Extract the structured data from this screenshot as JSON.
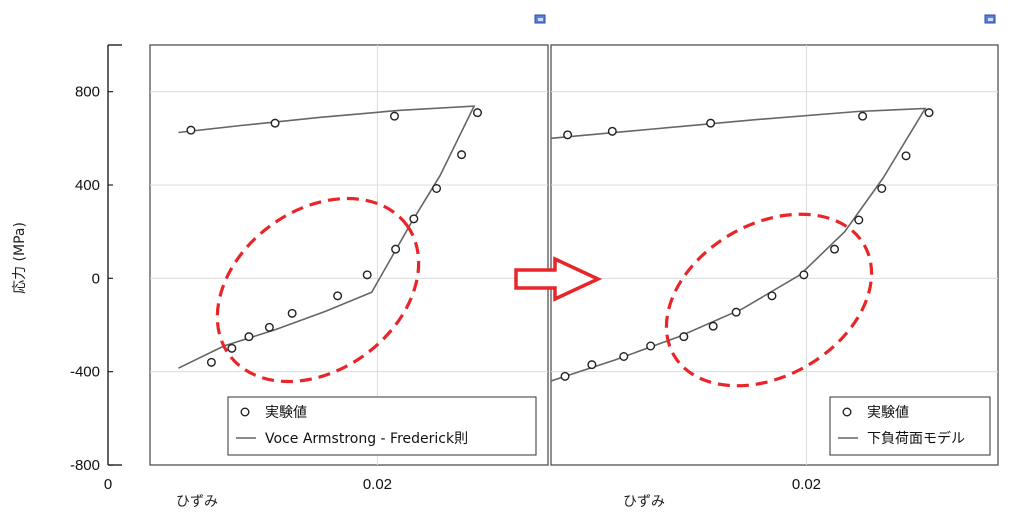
{
  "ylabel": "応力 (MPa)",
  "chart_data": [
    {
      "type": "scatter",
      "xlabel": "ひずみ",
      "ylabel": "応力 (MPa)",
      "xlim": [
        0,
        0.035
      ],
      "ylim": [
        -800,
        1000
      ],
      "xticks": [
        "0",
        "0.02"
      ],
      "yticks": [
        "-800",
        "-400",
        "0",
        "400",
        "800"
      ],
      "grid": true,
      "legend_position": "bottom-right",
      "series": [
        {
          "name": "実験値",
          "style": "circle-markers",
          "x": [
            0.0036,
            0.011,
            0.0215,
            0.0288,
            0.0274,
            0.0252,
            0.0232,
            0.0216,
            0.0191,
            0.0165,
            0.0125,
            0.0105,
            0.0087,
            0.0072,
            0.0054
          ],
          "y": [
            635,
            665,
            695,
            710,
            530,
            385,
            255,
            125,
            15,
            -75,
            -150,
            -210,
            -250,
            -300,
            -360
          ]
        },
        {
          "name": "Voce Armstrong - Frederick則",
          "style": "line",
          "x": [
            0.0025,
            0.008,
            0.015,
            0.022,
            0.0285,
            0.0255,
            0.023,
            0.0195,
            0.0155,
            0.011,
            0.0065,
            0.0025
          ],
          "y": [
            625,
            655,
            690,
            720,
            738,
            440,
            240,
            -60,
            -140,
            -220,
            -290,
            -385
          ]
        }
      ]
    },
    {
      "type": "scatter",
      "xlabel": "ひずみ",
      "xlim": [
        0,
        0.035
      ],
      "ylim": [
        -800,
        1000
      ],
      "xticks": [
        "0.02"
      ],
      "grid": true,
      "legend_position": "bottom-right",
      "series": [
        {
          "name": "実験値",
          "style": "circle-markers",
          "x": [
            0.0013,
            0.0048,
            0.0125,
            0.0244,
            0.0296,
            0.0278,
            0.0259,
            0.0241,
            0.0222,
            0.0198,
            0.0173,
            0.0145,
            0.0127,
            0.0104,
            0.0078,
            0.0057,
            0.0032,
            0.0011
          ],
          "y": [
            615,
            630,
            665,
            695,
            710,
            525,
            385,
            250,
            125,
            15,
            -75,
            -145,
            -205,
            -250,
            -290,
            -335,
            -370,
            -420
          ]
        },
        {
          "name": "下負荷面モデル",
          "style": "line",
          "x": [
            0.0,
            0.008,
            0.016,
            0.024,
            0.0293,
            0.026,
            0.023,
            0.0195,
            0.015,
            0.01,
            0.005,
            0.0
          ],
          "y": [
            600,
            640,
            680,
            715,
            728,
            430,
            200,
            15,
            -130,
            -250,
            -350,
            -440
          ]
        }
      ]
    }
  ],
  "arrow_color": "#e8262a",
  "ellipse_color": "#e8262a",
  "icons": [
    "expand-icon",
    "expand-icon"
  ]
}
